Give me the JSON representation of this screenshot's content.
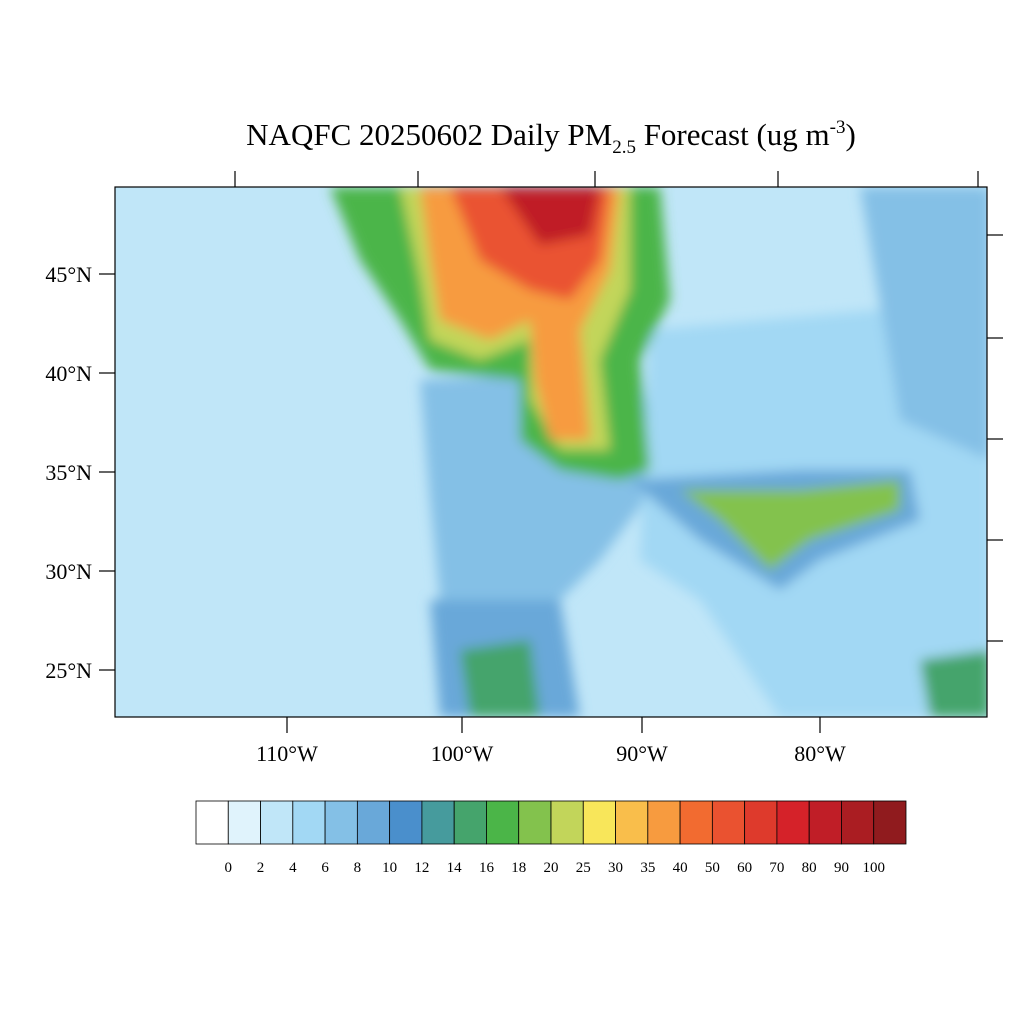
{
  "title": {
    "main": "NAQFC 20250602 Daily PM",
    "sub": "2.5",
    "mid": " Forecast (ug m",
    "sup": "-3",
    "end": ")"
  },
  "lat_labels": [
    "45°N",
    "40°N",
    "35°N",
    "30°N",
    "25°N"
  ],
  "lon_labels": [
    "110°W",
    "100°W",
    "90°W",
    "80°W"
  ],
  "colorbar": {
    "labels": [
      "0",
      "2",
      "4",
      "6",
      "8",
      "10",
      "12",
      "14",
      "16",
      "18",
      "20",
      "25",
      "30",
      "35",
      "40",
      "50",
      "60",
      "70",
      "80",
      "90",
      "100"
    ],
    "colors": [
      "#ffffff",
      "#e0f3fc",
      "#c0e6f8",
      "#a2d8f4",
      "#84c0e6",
      "#69a8d9",
      "#4a8fcc",
      "#469b9d",
      "#45a46c",
      "#4bb548",
      "#83c24d",
      "#c2d55a",
      "#f8e65a",
      "#f9be4b",
      "#f79b3f",
      "#f26b30",
      "#ea5230",
      "#de3a2c",
      "#d52229",
      "#c01e27",
      "#aa1d22",
      "#901b1e"
    ]
  }
}
